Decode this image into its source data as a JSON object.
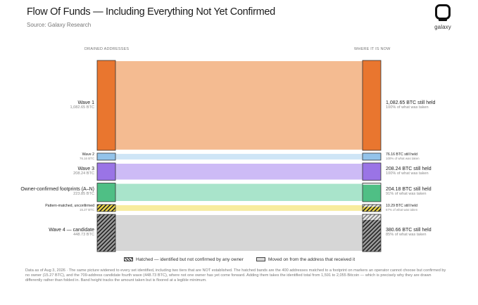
{
  "header": {
    "title": "Flow Of Funds — Including Everything Not Yet Confirmed",
    "subtitle": "Source: Galaxy Research",
    "logo_text": "galaxy"
  },
  "columns": {
    "left": "DRAINED ADDRESSES",
    "right": "WHERE IT IS NOW"
  },
  "rows": [
    {
      "name": "Wave 1",
      "amount": "1,082.65 BTC",
      "held_text": "1,082.65 BTC still held",
      "held_pct_text": "100% of what was taken",
      "btc": 1082.65,
      "held_fraction": 1.0,
      "style": "solid",
      "node_color": "#e9762f",
      "band_color": "#f4bb91"
    },
    {
      "name": "Wave 2",
      "amount": "76.16 BTC",
      "held_text": "76.16 BTC still held",
      "held_pct_text": "100% of what was taken",
      "btc": 76.16,
      "held_fraction": 1.0,
      "style": "solid",
      "node_color": "#93c3ea",
      "band_color": "#cfe5f6"
    },
    {
      "name": "Wave 3",
      "amount": "208.24 BTC",
      "held_text": "208.24 BTC still held",
      "held_pct_text": "100% of what was taken",
      "btc": 208.24,
      "held_fraction": 1.0,
      "style": "solid",
      "node_color": "#9a74e6",
      "band_color": "#cdbbf6"
    },
    {
      "name": "Owner-confirmed footprints (A–N)",
      "amount": "223.85 BTC",
      "held_text": "204.18 BTC still held",
      "held_pct_text": "91% of what was taken",
      "btc": 223.85,
      "held_fraction": 0.91,
      "style": "solid",
      "node_color": "#4fbf85",
      "band_color": "#a9e4cb"
    },
    {
      "name": "Pattern-matched, unconfirmed",
      "amount": "15.27 BTC",
      "held_text": "10.29 BTC still held",
      "held_pct_text": "67% of what was taken",
      "btc": 15.27,
      "held_fraction": 0.67,
      "style": "hatch-yellow",
      "node_color": "#f0d94a",
      "band_color": "#f8ec9e"
    },
    {
      "name": "Wave 4 — candidate",
      "amount": "448.73 BTC",
      "held_text": "380.66 BTC still held",
      "held_pct_text": "85% of what was taken",
      "btc": 448.73,
      "held_fraction": 0.85,
      "style": "hatch-gray",
      "node_color": "#9e9e9e",
      "band_color": "#d6d6d6"
    }
  ],
  "legend": {
    "hatched": "Hatched — identified but not confirmed by any owner",
    "moved": "Moved on from the address that received it"
  },
  "footnote": "Data as of Aug 3, 2026 · The same picture widened to every set identified, including two tiers that are NOT established. The hatched bands are the 400 addresses matched to a footprint on markers an operator cannot choose but confirmed by no owner (15.27 BTC), and the 709-address candidate fourth wave (448.73 BTC), where not one owner has yet come forward. Adding them takes the identified total from 1,591 to 2,055 Bitcoin — which is precisely why they are drawn differently rather than folded in. Band height tracks the amount taken but is floored at a legible minimum."
}
